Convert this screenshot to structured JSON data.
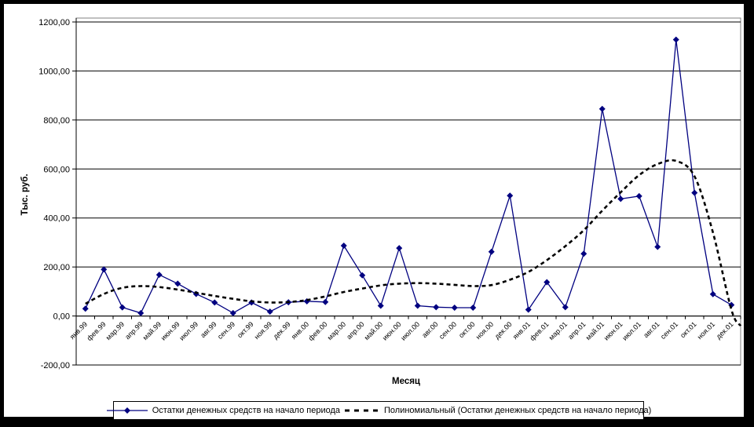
{
  "chart_data": {
    "type": "line",
    "xlabel": "Месяц",
    "ylabel": "Тыс. руб.",
    "ylim": [
      -200,
      1200
    ],
    "y_tick_step": 200,
    "y_tick_labels": [
      "1200,00",
      "1000,00",
      "800,00",
      "600,00",
      "400,00",
      "200,00",
      "0,00",
      "-200,00"
    ],
    "grid": true,
    "legend_position": "bottom",
    "categories": [
      "янв.99",
      "фев.99",
      "мар.99",
      "апр.99",
      "май.99",
      "июн.99",
      "июл.99",
      "авг.99",
      "сен.99",
      "окт.99",
      "ноя.99",
      "дек.99",
      "янв.00",
      "фев.00",
      "мар.00",
      "апр.00",
      "май.00",
      "июн.00",
      "июл.00",
      "авг.00",
      "сен.00",
      "окт.00",
      "ноя.00",
      "дек.00",
      "янв.01",
      "фев.01",
      "мар.01",
      "апр.01",
      "май.01",
      "июн.01",
      "июл.01",
      "авг.01",
      "сен.01",
      "окт.01",
      "ноя.01",
      "дек.01"
    ],
    "series": [
      {
        "name": "Остатки денежных средств на начало периода",
        "style": "line-with-diamond-markers",
        "color": "#000080",
        "values": [
          30,
          190,
          35,
          12,
          168,
          132,
          90,
          55,
          12,
          55,
          18,
          56,
          60,
          57,
          287,
          166,
          42,
          277,
          42,
          36,
          34,
          34,
          262,
          491,
          26,
          138,
          36,
          254,
          845,
          478,
          489,
          282,
          1128,
          503,
          89,
          45
        ]
      },
      {
        "name": "Полиномиальный (Остатки денежных средств на начало периода)",
        "style": "dashed-polynomial-trend",
        "color": "#000000",
        "values": [
          50,
          90,
          115,
          122,
          118,
          108,
          95,
          82,
          70,
          60,
          55,
          57,
          65,
          80,
          98,
          112,
          125,
          132,
          134,
          132,
          127,
          122,
          126,
          148,
          180,
          228,
          285,
          350,
          430,
          505,
          575,
          620,
          633,
          570,
          340,
          25
        ],
        "overhang_value": -40
      }
    ],
    "colors": {
      "series_line": "#000080",
      "trend_line": "#000000",
      "gridline": "#000000",
      "plot_border": "#808080",
      "frame": "#000000",
      "background": "#ffffff"
    }
  }
}
